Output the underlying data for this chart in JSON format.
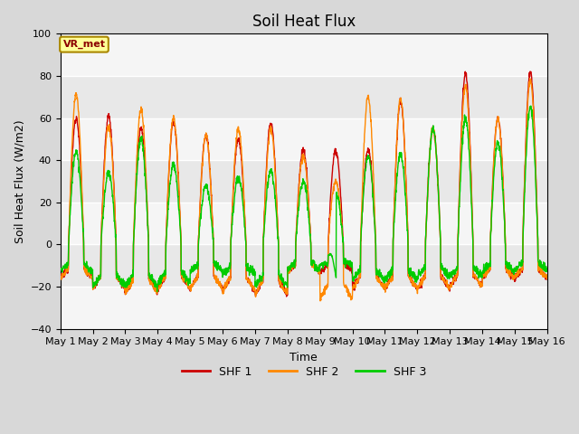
{
  "title": "Soil Heat Flux",
  "ylabel": "Soil Heat Flux (W/m2)",
  "xlabel": "Time",
  "ylim": [
    -40,
    100
  ],
  "yticks": [
    -40,
    -20,
    0,
    20,
    40,
    60,
    80,
    100
  ],
  "colors": {
    "SHF 1": "#cc0000",
    "SHF 2": "#ff8800",
    "SHF 3": "#00cc00"
  },
  "line_width": 1.0,
  "background_color": "#d8d8d8",
  "plot_bg_color": "#e8e8e8",
  "plot_bg_light": "#f5f5f5",
  "annotation_text": "VR_met",
  "annotation_box_color": "#ffff99",
  "annotation_box_edge": "#aa8800",
  "x_tick_labels": [
    "May 1",
    "May 2",
    "May 3",
    "May 4",
    "May 5",
    "May 6",
    "May 7",
    "May 8",
    "May 9",
    "May 10",
    "May 11",
    "May 12",
    "May 13",
    "May 14",
    "May 15",
    "May 16"
  ],
  "days": 15,
  "pts_per_day": 144,
  "title_fontsize": 12,
  "axis_fontsize": 9,
  "tick_fontsize": 8,
  "shf1_peaks": [
    60,
    61,
    55,
    58,
    52,
    50,
    58,
    45,
    45,
    45,
    68,
    55,
    81,
    60,
    82
  ],
  "shf2_peaks": [
    71,
    56,
    64,
    60,
    52,
    55,
    55,
    42,
    30,
    70,
    69,
    55,
    75,
    60,
    78
  ],
  "shf3_peaks": [
    44,
    34,
    50,
    38,
    28,
    32,
    35,
    30,
    25,
    42,
    43,
    55,
    60,
    48,
    65
  ],
  "shf1_valleys": [
    -16,
    -21,
    -23,
    -21,
    -21,
    -22,
    -24,
    -13,
    -13,
    -21,
    -21,
    -21,
    -20,
    -16,
    -16
  ],
  "shf2_valleys": [
    -16,
    -21,
    -23,
    -21,
    -21,
    -22,
    -24,
    -13,
    -26,
    -21,
    -21,
    -21,
    -20,
    -16,
    -16
  ],
  "shf3_valleys": [
    -13,
    -20,
    -20,
    -18,
    -13,
    -14,
    -20,
    -12,
    -10,
    -17,
    -17,
    -15,
    -15,
    -13,
    -12
  ]
}
